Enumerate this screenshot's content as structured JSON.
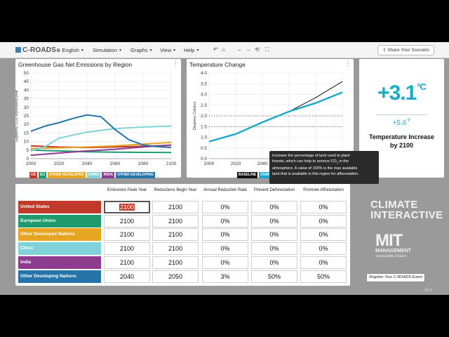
{
  "app": {
    "logo": "C-ROADS",
    "menus": [
      "English",
      "Simulation",
      "Graphs",
      "View",
      "Help"
    ],
    "toolbar_icons": [
      "undo-icon",
      "home-icon",
      "back-icon",
      "forward-icon",
      "reload-icon",
      "fullscreen-icon"
    ],
    "share_label": "Share Your Scenario"
  },
  "emissions_chart": {
    "title": "Greenhouse Gas Net Emissions by Region",
    "legend": [
      {
        "label": "US",
        "color": "#c0392b"
      },
      {
        "label": "EU",
        "color": "#1e9b6e"
      },
      {
        "label": "OTHER DEVELOPED",
        "color": "#e6a520"
      },
      {
        "label": "CHINA",
        "color": "#7fd3d8"
      },
      {
        "label": "INDIA",
        "color": "#8e3c8f"
      },
      {
        "label": "OTHER DEVELOPING",
        "color": "#2574a9"
      }
    ]
  },
  "temperature_chart": {
    "title": "Temperature Change",
    "legend": [
      "BASELINE",
      "CURRENT"
    ]
  },
  "chart_data": [
    {
      "type": "line",
      "title": "Greenhouse Gas Net Emissions by Region",
      "xlabel": "",
      "ylabel": "Gigatons CO2 equivalent/year",
      "xlim": [
        2000,
        2100
      ],
      "ylim": [
        0,
        50
      ],
      "x_ticks": [
        2000,
        2020,
        2040,
        2060,
        2080,
        2100
      ],
      "y_ticks": [
        0,
        5,
        10,
        15,
        20,
        25,
        30,
        35,
        40,
        45,
        50
      ],
      "grid": true,
      "series": [
        {
          "name": "US",
          "color": "#c0392b",
          "x": [
            2000,
            2020,
            2040,
            2060,
            2080,
            2100
          ],
          "y": [
            7.5,
            6.8,
            6.5,
            6.8,
            7.3,
            7.8
          ]
        },
        {
          "name": "EU",
          "color": "#1e9b6e",
          "x": [
            2000,
            2020,
            2040,
            2060,
            2080,
            2100
          ],
          "y": [
            5,
            4.5,
            4,
            3.8,
            3.7,
            3.6
          ]
        },
        {
          "name": "OTHER DEVELOPED",
          "color": "#e6a520",
          "x": [
            2000,
            2020,
            2040,
            2060,
            2080,
            2100
          ],
          "y": [
            6,
            6.3,
            6.8,
            7.5,
            8.5,
            9.5
          ]
        },
        {
          "name": "CHINA",
          "color": "#7fd3d8",
          "x": [
            2000,
            2010,
            2020,
            2040,
            2060,
            2080,
            2100
          ],
          "y": [
            4.5,
            7,
            12,
            15.5,
            17.5,
            18.5,
            19
          ]
        },
        {
          "name": "INDIA",
          "color": "#8e3c8f",
          "x": [
            2000,
            2020,
            2040,
            2060,
            2080,
            2100
          ],
          "y": [
            2,
            3.3,
            4.5,
            5.5,
            6.8,
            8
          ]
        },
        {
          "name": "OTHER DEVELOPING",
          "color": "#2574a9",
          "x": [
            2000,
            2010,
            2020,
            2030,
            2040,
            2050,
            2060,
            2070,
            2080,
            2090,
            2100
          ],
          "y": [
            16,
            19,
            21,
            23.5,
            25.5,
            24.5,
            17,
            11,
            8,
            7,
            6.5
          ]
        }
      ]
    },
    {
      "type": "line",
      "title": "Temperature Change",
      "xlabel": "",
      "ylabel": "Degrees Celsius",
      "xlim": [
        2000,
        2100
      ],
      "ylim": [
        0,
        4
      ],
      "x_ticks": [
        2000,
        2020,
        2040,
        2060,
        2080,
        2100
      ],
      "y_ticks": [
        0,
        0.5,
        1,
        1.5,
        2,
        2.5,
        3,
        3.5,
        4
      ],
      "reference_lines": [
        1.5,
        2
      ],
      "series": [
        {
          "name": "BASELINE",
          "color": "#111111",
          "x": [
            2000,
            2020,
            2040,
            2060,
            2080,
            2100
          ],
          "y": [
            0.8,
            1.15,
            1.7,
            2.2,
            2.85,
            3.6
          ]
        },
        {
          "name": "CURRENT",
          "color": "#1aa9c8",
          "x": [
            2000,
            2020,
            2040,
            2060,
            2080,
            2100
          ],
          "y": [
            0.8,
            1.15,
            1.7,
            2.2,
            2.6,
            3.1
          ]
        }
      ]
    }
  ],
  "temperature_result": {
    "value": "+3.1",
    "unit_c": "°C",
    "value_f": "+5.6",
    "unit_f": "°F",
    "caption": "Temperature Increase by 2100"
  },
  "table": {
    "headers": [
      "Emissions Peak Year",
      "Reductions Begin Year",
      "Annual Reduction Rate",
      "Prevent Deforestation",
      "Promote Afforestation"
    ],
    "rows": [
      {
        "name": "United States",
        "color": "#c0392b",
        "values": [
          "2100",
          "2100",
          "0%",
          "0%",
          "0%"
        ]
      },
      {
        "name": "European Union",
        "color": "#1e9b6e",
        "values": [
          "2100",
          "2100",
          "0%",
          "0%",
          "0%"
        ]
      },
      {
        "name": "Other Developed Nations",
        "color": "#e6a520",
        "values": [
          "2100",
          "2100",
          "0%",
          "0%",
          "0%"
        ]
      },
      {
        "name": "China",
        "color": "#7fd3d8",
        "values": [
          "2100",
          "2100",
          "0%",
          "0%",
          "0%"
        ]
      },
      {
        "name": "India",
        "color": "#8e3c8f",
        "values": [
          "2100",
          "2100",
          "0%",
          "0%",
          "0%"
        ]
      },
      {
        "name": "Other Developing Nations",
        "color": "#2574a9",
        "values": [
          "2040",
          "2050",
          "3%",
          "50%",
          "50%"
        ]
      }
    ]
  },
  "tooltip": {
    "line1": "Increase the percentage of land used to plant",
    "line2": "forests, which can help to remove CO",
    "line2_sub": "2",
    "line2_end": " in the",
    "line3": "atmosphere. A value of 100% is the max available",
    "line4": "land that is available in this region for afforestation."
  },
  "branding": {
    "ci_line1": "CLIMATE",
    "ci_line2": "INTERACTIVE",
    "mit_line1": "MIT",
    "mit_line2": "MANAGEMENT",
    "mit_line3": "Sustainability Initiative",
    "register_label": "Register Your C-ROADS Event",
    "version": "v22.3"
  }
}
